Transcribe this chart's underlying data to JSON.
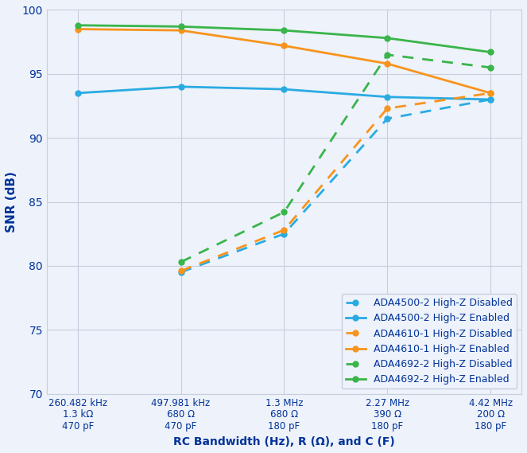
{
  "x_positions": [
    0,
    1,
    2,
    3,
    4
  ],
  "x_tick_labels": [
    "260.482 kHz\n1.3 kΩ\n470 pF",
    "497.981 kHz\n680 Ω\n470 pF",
    "1.3 MHz\n680 Ω\n180 pF",
    "2.27 MHz\n390 Ω\n180 pF",
    "4.42 MHz\n200 Ω\n180 pF"
  ],
  "xlabel": "RC Bandwidth (Hz), R (Ω), and C (F)",
  "ylabel": "SNR (dB)",
  "ylim": [
    70,
    100
  ],
  "yticks": [
    70,
    75,
    80,
    85,
    90,
    95,
    100
  ],
  "series": [
    {
      "label": "ADA4500-2 High-Z Disabled",
      "color": "#29ABE2",
      "linestyle": "dashed",
      "marker": "o",
      "data": [
        null,
        79.5,
        82.5,
        91.5,
        93.0
      ]
    },
    {
      "label": "ADA4500-2 High-Z Enabled",
      "color": "#29ABE2",
      "linestyle": "solid",
      "marker": "o",
      "data": [
        93.5,
        94.0,
        93.8,
        93.2,
        93.0
      ]
    },
    {
      "label": "ADA4610-1 High-Z Disabled",
      "color": "#F7941D",
      "linestyle": "dashed",
      "marker": "o",
      "data": [
        null,
        79.6,
        82.8,
        92.3,
        93.5
      ]
    },
    {
      "label": "ADA4610-1 High-Z Enabled",
      "color": "#F7941D",
      "linestyle": "solid",
      "marker": "o",
      "data": [
        98.5,
        98.4,
        97.2,
        95.8,
        93.5
      ]
    },
    {
      "label": "ADA4692-2 High-Z Disabled",
      "color": "#39B54A",
      "linestyle": "dashed",
      "marker": "o",
      "data": [
        null,
        80.3,
        84.2,
        96.5,
        95.5
      ]
    },
    {
      "label": "ADA4692-2 High-Z Enabled",
      "color": "#39B54A",
      "linestyle": "solid",
      "marker": "o",
      "data": [
        98.8,
        98.7,
        98.4,
        97.8,
        96.7
      ]
    }
  ],
  "grid_color": "#C8CEDF",
  "background_color": "#EEF2FA",
  "legend_fontsize": 9,
  "axis_label_color": "#003399"
}
